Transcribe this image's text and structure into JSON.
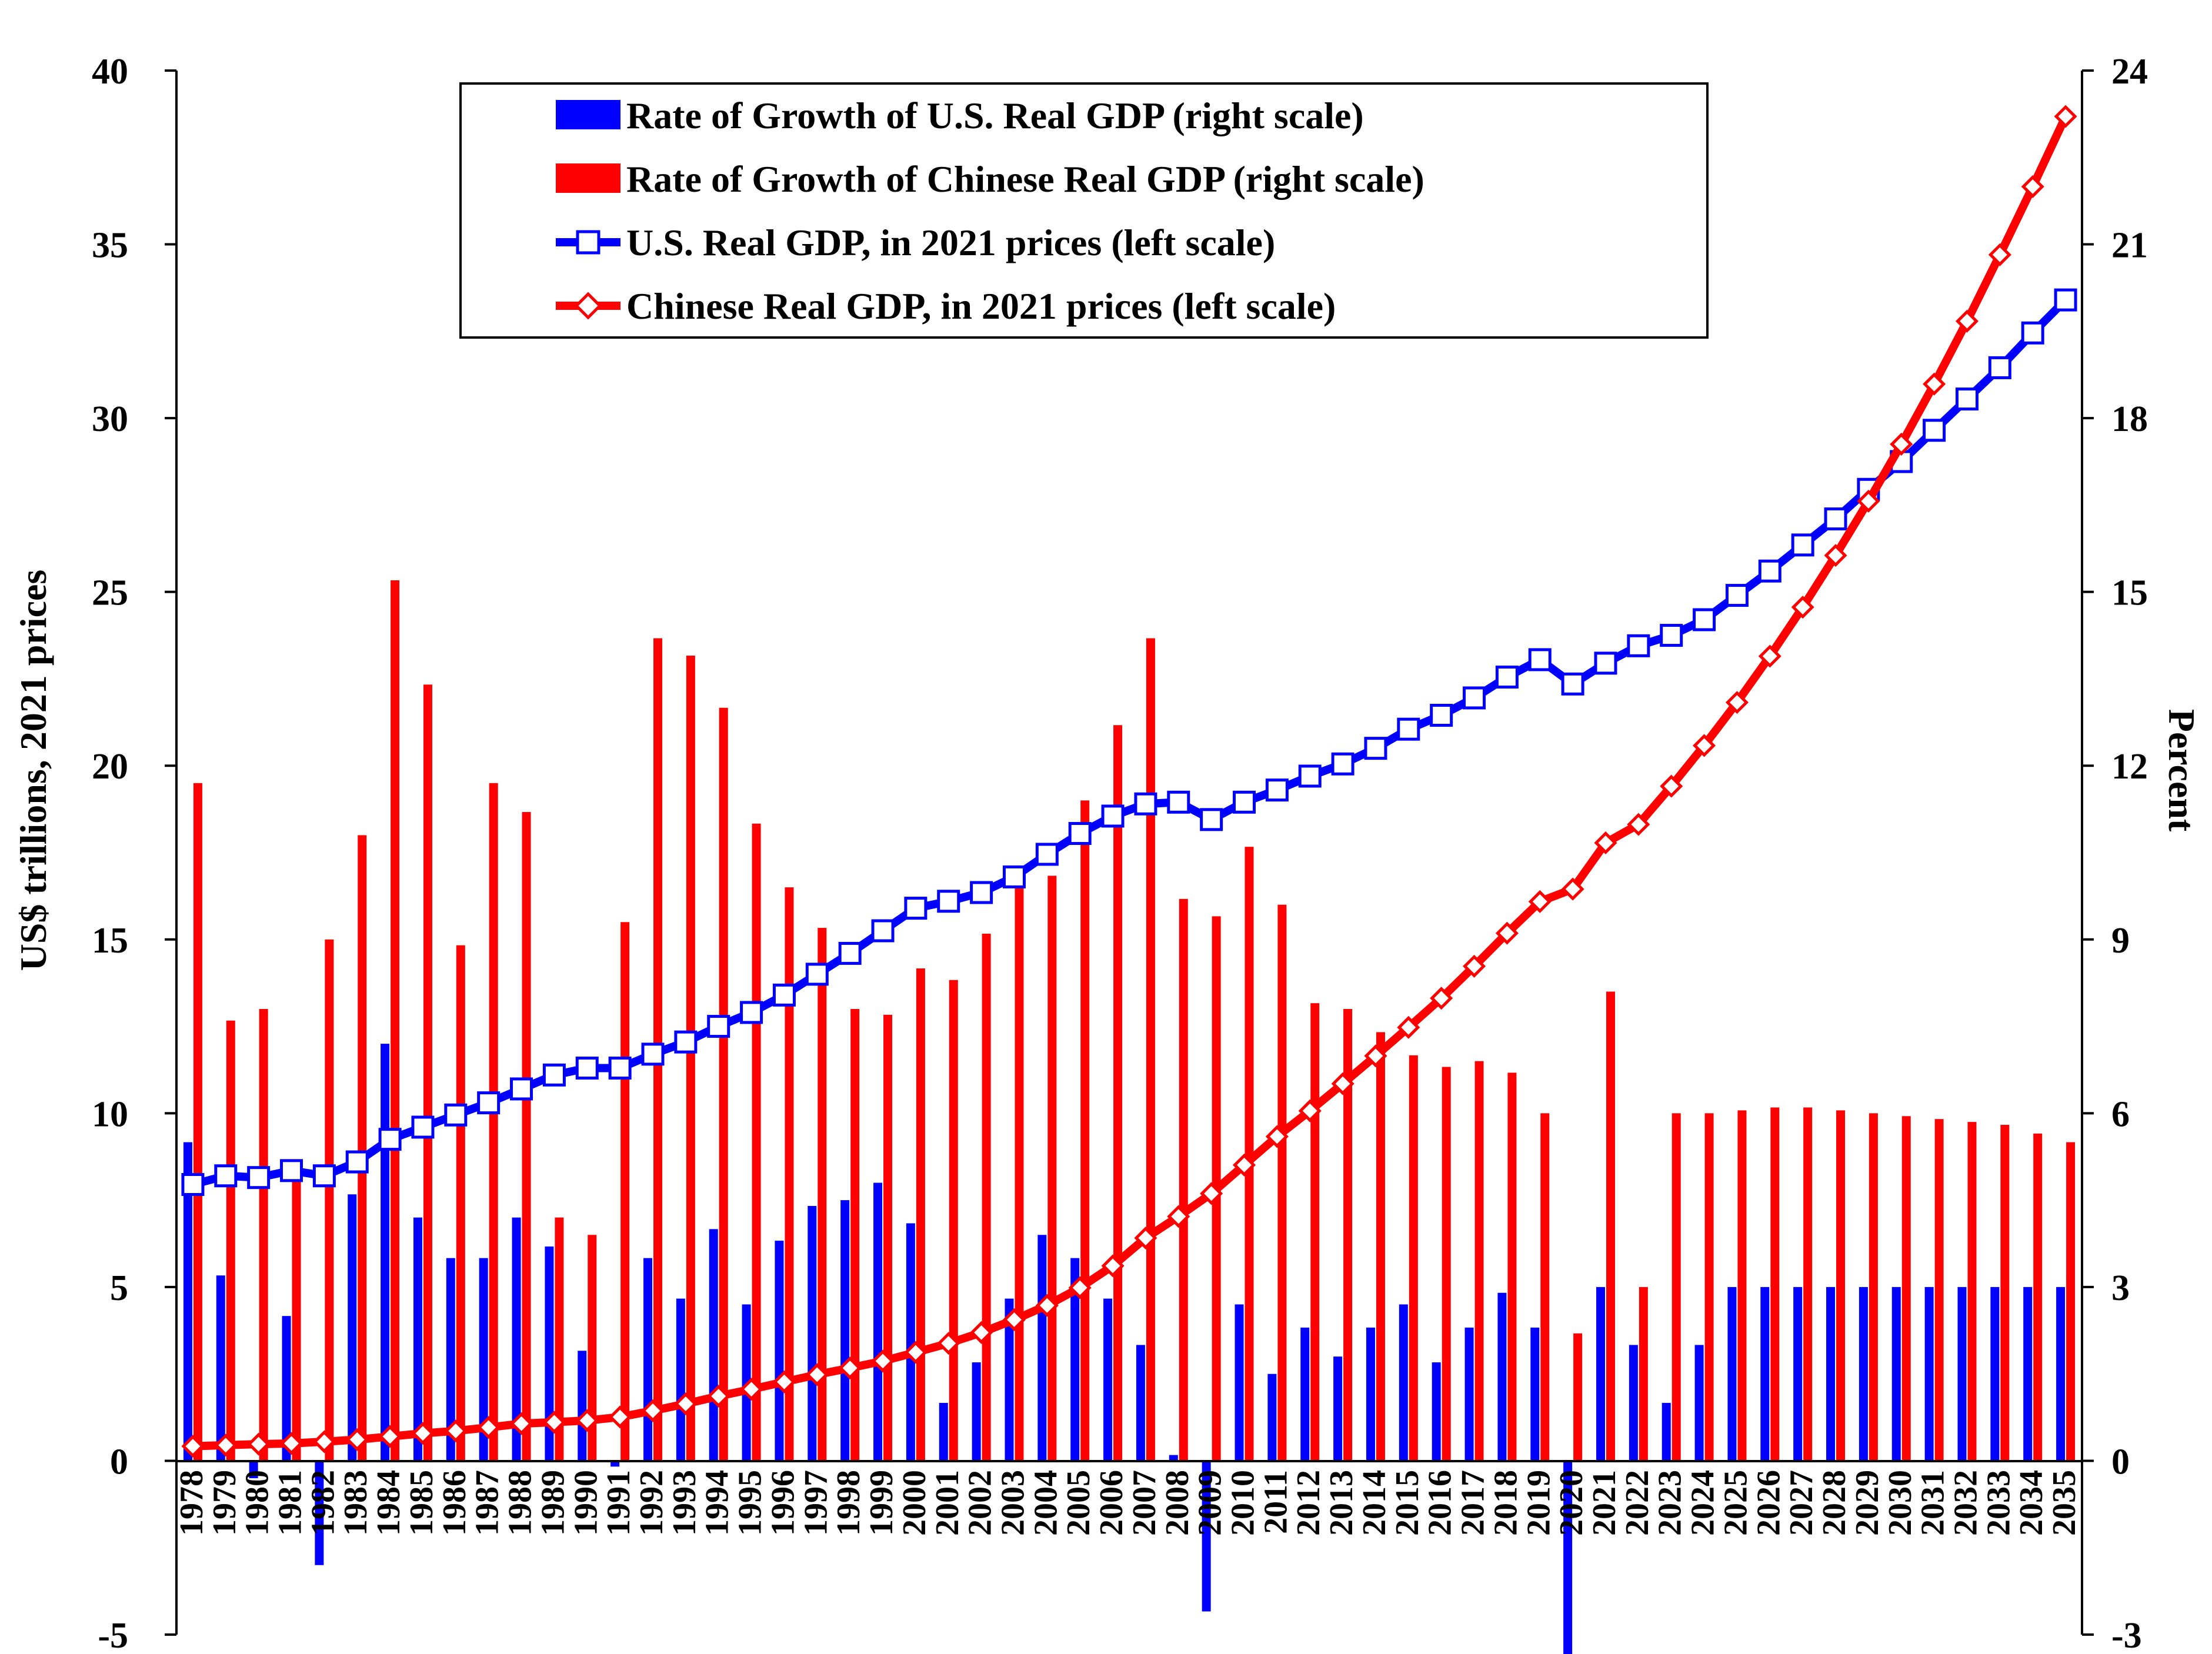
{
  "chart_data": {
    "type": "bar",
    "title": "",
    "left_axis": {
      "label": "US$ trillions, 2021 prices",
      "range": [
        -5,
        40
      ],
      "ticks": [
        "-5",
        "0",
        "5",
        "10",
        "15",
        "20",
        "25",
        "30",
        "35",
        "40"
      ]
    },
    "right_axis": {
      "label": "Percent",
      "range": [
        -3,
        24
      ],
      "ticks": [
        "-3",
        "0",
        "3",
        "6",
        "9",
        "12",
        "15",
        "18",
        "21",
        "24"
      ]
    },
    "legend_position": "top-center",
    "grid": false,
    "categories": [
      "1978",
      "1979",
      "1980",
      "1981",
      "1982",
      "1983",
      "1984",
      "1985",
      "1986",
      "1987",
      "1988",
      "1989",
      "1990",
      "1991",
      "1992",
      "1993",
      "1994",
      "1995",
      "1996",
      "1997",
      "1998",
      "1999",
      "2000",
      "2001",
      "2002",
      "2003",
      "2004",
      "2005",
      "2006",
      "2007",
      "2008",
      "2009",
      "2010",
      "2011",
      "2012",
      "2013",
      "2014",
      "2015",
      "2016",
      "2017",
      "2018",
      "2019",
      "2020",
      "2021",
      "2022",
      "2023",
      "2024",
      "2025",
      "2026",
      "2027",
      "2028",
      "2029",
      "2030",
      "2031",
      "2032",
      "2033",
      "2034",
      "2035"
    ],
    "series": [
      {
        "name": "Rate of Growth of U.S. Real GDP (right scale)",
        "kind": "bar",
        "axis": "right",
        "color": "#0000ff",
        "values": [
          5.5,
          3.2,
          -0.3,
          2.5,
          -1.8,
          4.6,
          7.2,
          4.2,
          3.5,
          3.5,
          4.2,
          3.7,
          1.9,
          -0.1,
          3.5,
          2.8,
          4.0,
          2.7,
          3.8,
          4.4,
          4.5,
          4.8,
          4.1,
          1.0,
          1.7,
          2.8,
          3.9,
          3.5,
          2.8,
          2.0,
          0.1,
          -2.6,
          2.7,
          1.5,
          2.3,
          1.8,
          2.3,
          2.7,
          1.7,
          2.3,
          2.9,
          2.3,
          -3.4,
          3.0,
          2.0,
          1.0,
          2.0,
          3.0,
          3.0,
          3.0,
          3.0,
          3.0,
          3.0,
          3.0,
          3.0,
          3.0,
          3.0,
          3.0
        ]
      },
      {
        "name": "Rate of Growth of Chinese Real GDP (right scale)",
        "kind": "bar",
        "axis": "right",
        "color": "#ff0000",
        "values": [
          11.7,
          7.6,
          7.8,
          5.1,
          9.0,
          10.8,
          15.2,
          13.4,
          8.9,
          11.7,
          11.2,
          4.2,
          3.9,
          9.3,
          14.2,
          13.9,
          13.0,
          11.0,
          9.9,
          9.2,
          7.8,
          7.7,
          8.5,
          8.3,
          9.1,
          10.0,
          10.1,
          11.4,
          12.7,
          14.2,
          9.7,
          9.4,
          10.6,
          9.6,
          7.9,
          7.8,
          7.4,
          7.0,
          6.8,
          6.9,
          6.7,
          6.0,
          2.2,
          8.1,
          3.0,
          6.0,
          6.0,
          6.05,
          6.1,
          6.1,
          6.05,
          6.0,
          5.95,
          5.9,
          5.85,
          5.8,
          5.65,
          5.5
        ]
      },
      {
        "name": "U.S. Real GDP, in 2021 prices (left scale)",
        "kind": "line",
        "axis": "left",
        "color": "#0000ff",
        "marker": "square",
        "values": [
          7.95,
          8.2,
          8.15,
          8.35,
          8.2,
          8.6,
          9.25,
          9.6,
          9.95,
          10.3,
          10.7,
          11.1,
          11.3,
          11.3,
          11.7,
          12.05,
          12.5,
          12.9,
          13.4,
          14.0,
          14.6,
          15.25,
          15.9,
          16.1,
          16.35,
          16.8,
          17.45,
          18.05,
          18.55,
          18.9,
          18.95,
          18.45,
          18.95,
          19.3,
          19.7,
          20.05,
          20.5,
          21.05,
          21.45,
          21.95,
          22.55,
          23.05,
          22.35,
          22.95,
          23.45,
          23.75,
          24.2,
          24.9,
          25.6,
          26.35,
          27.1,
          27.95,
          28.75,
          29.65,
          30.55,
          31.45,
          32.45,
          33.4
        ]
      },
      {
        "name": "Chinese Real GDP, in 2021 prices (left scale)",
        "kind": "line",
        "axis": "left",
        "color": "#ff0000",
        "marker": "diamond",
        "values": [
          0.42,
          0.45,
          0.48,
          0.5,
          0.55,
          0.61,
          0.7,
          0.79,
          0.86,
          0.96,
          1.07,
          1.11,
          1.16,
          1.26,
          1.44,
          1.64,
          1.86,
          2.06,
          2.27,
          2.48,
          2.67,
          2.87,
          3.12,
          3.38,
          3.69,
          4.06,
          4.47,
          4.98,
          5.61,
          6.41,
          7.03,
          7.69,
          8.51,
          9.33,
          10.07,
          10.85,
          11.65,
          12.47,
          13.31,
          14.23,
          15.18,
          16.09,
          16.45,
          17.78,
          18.31,
          19.41,
          20.58,
          21.82,
          23.15,
          24.56,
          26.05,
          27.61,
          29.25,
          30.98,
          32.79,
          34.7,
          36.66,
          38.68
        ]
      }
    ]
  }
}
